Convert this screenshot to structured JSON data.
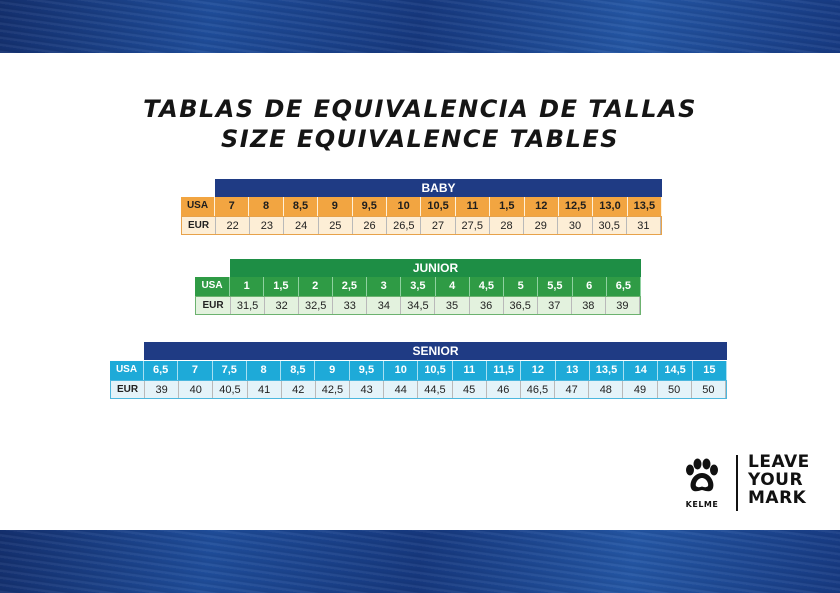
{
  "titles": {
    "line1": "TABLAS DE EQUIVALENCIA DE TALLAS",
    "line2": "SIZE EQUIVALENCE TABLES"
  },
  "tables": {
    "baby": {
      "header": "BABY",
      "usa_label": "USA",
      "eur_label": "EUR",
      "usa": [
        "7",
        "8",
        "8,5",
        "9",
        "9,5",
        "10",
        "10,5",
        "11",
        "1,5",
        "12",
        "12,5",
        "13,0",
        "13,5"
      ],
      "eur": [
        "22",
        "23",
        "24",
        "25",
        "26",
        "26,5",
        "27",
        "27,5",
        "28",
        "29",
        "30",
        "30,5",
        "31"
      ]
    },
    "junior": {
      "header": "JUNIOR",
      "usa_label": "USA",
      "eur_label": "EUR",
      "usa": [
        "1",
        "1,5",
        "2",
        "2,5",
        "3",
        "3,5",
        "4",
        "4,5",
        "5",
        "5,5",
        "6",
        "6,5"
      ],
      "eur": [
        "31,5",
        "32",
        "32,5",
        "33",
        "34",
        "34,5",
        "35",
        "36",
        "36,5",
        "37",
        "38",
        "39"
      ]
    },
    "senior": {
      "header": "SENIOR",
      "usa_label": "USA",
      "eur_label": "EUR",
      "usa": [
        "6,5",
        "7",
        "7,5",
        "8",
        "8,5",
        "9",
        "9,5",
        "10",
        "10,5",
        "11",
        "11,5",
        "12",
        "13",
        "13,5",
        "14",
        "14,5",
        "15"
      ],
      "eur": [
        "39",
        "40",
        "40,5",
        "41",
        "42",
        "42,5",
        "43",
        "44",
        "44,5",
        "45",
        "46",
        "46,5",
        "47",
        "48",
        "49",
        "50",
        "50"
      ]
    }
  },
  "colors": {
    "baby_header": "#1f3b84",
    "baby_usa": "#f2a541",
    "junior_header": "#1e8e45",
    "junior_usa": "#2f9b45",
    "senior_header": "#1f3b84",
    "senior_usa": "#1eaad8"
  },
  "logo": {
    "brand": "KELME",
    "icon": "paw-icon",
    "slogan": [
      "LEAVE",
      "YOUR",
      "MARK"
    ]
  }
}
